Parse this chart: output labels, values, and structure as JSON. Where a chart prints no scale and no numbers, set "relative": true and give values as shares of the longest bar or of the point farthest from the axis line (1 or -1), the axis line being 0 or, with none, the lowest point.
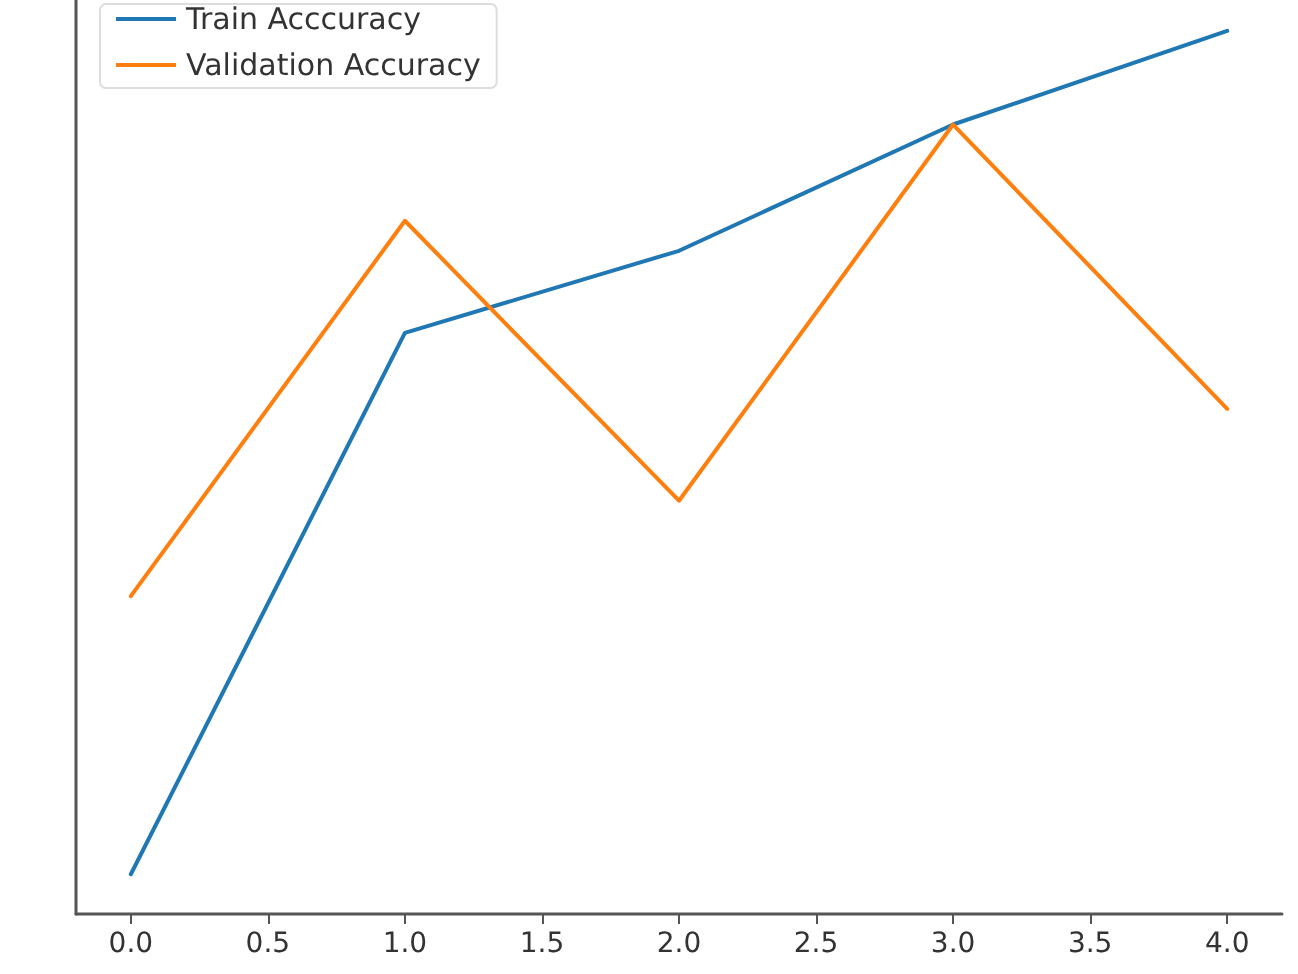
{
  "chart_data": {
    "type": "line",
    "x": [
      0,
      1,
      2,
      3,
      4
    ],
    "series": [
      {
        "name": "Train Acccuracy",
        "color": "#1f77b4",
        "values": [
          0.045,
          0.658,
          0.751,
          0.894,
          1
        ]
      },
      {
        "name": "Validation Accuracy",
        "color": "#ff7f0e",
        "values": [
          0.36,
          0.785,
          0.468,
          0.894,
          0.572
        ]
      }
    ],
    "relative": true,
    "xlim": [
      -0.2,
      4.2
    ],
    "xticks": [
      {
        "value": 0,
        "label": "0.0"
      },
      0.5,
      {
        "value": 1,
        "label": "1.0"
      },
      1.5,
      {
        "value": 2,
        "label": "2.0"
      },
      2.5,
      {
        "value": 3,
        "label": "3.0"
      },
      3.5,
      {
        "value": 4,
        "label": "4.0"
      }
    ],
    "legend": "top left",
    "marker": "none",
    "line_style": "solid"
  }
}
